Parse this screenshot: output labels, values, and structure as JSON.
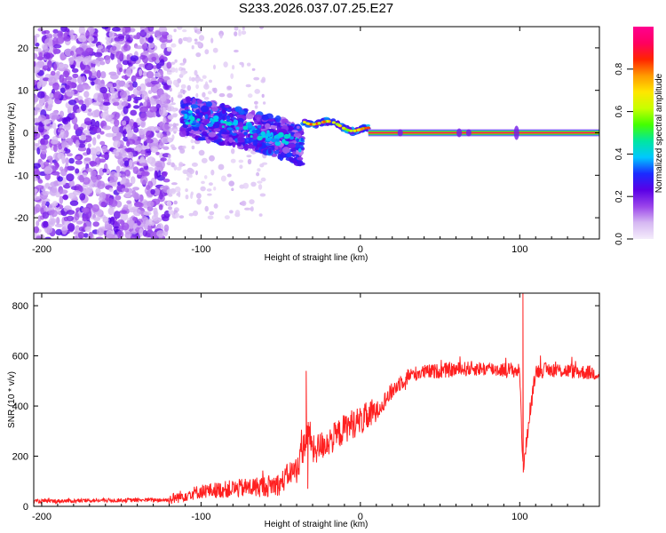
{
  "title": "S233.2026.037.07.25.E27",
  "chart_data": [
    {
      "type": "heatmap",
      "xlabel": "Height of straight line (km)",
      "ylabel": "Frequency (Hz)",
      "xlim": [
        -205,
        150
      ],
      "ylim": [
        -25,
        25
      ],
      "xticks": [
        -200,
        -100,
        0,
        100
      ],
      "yticks": [
        20,
        10,
        0,
        -10,
        -20
      ],
      "colorbar": {
        "label": "Normalized spectral amplitude",
        "range": [
          0.0,
          1.0
        ],
        "ticks": [
          0.0,
          0.2,
          0.4,
          0.6,
          0.8
        ],
        "tick_labels": [
          "0.0",
          "0.2",
          "0.4",
          "0.6",
          "0.8"
        ],
        "colors": [
          "#f4ecfb",
          "#d6b8f2",
          "#9a44ea",
          "#5a00e6",
          "#1a2bff",
          "#00c8ff",
          "#00e6a0",
          "#44ff00",
          "#c8ff00",
          "#ffe600",
          "#ff9a00",
          "#ff2400",
          "#ff0060",
          "#ff0090"
        ]
      },
      "features": [
        {
          "name": "broadband noise",
          "x_range": [
            -205,
            -120
          ],
          "freq_range": [
            -25,
            25
          ],
          "amplitude": 0.15
        },
        {
          "name": "scattered noise",
          "x_range": [
            -120,
            -60
          ],
          "freq_range": [
            -20,
            25
          ],
          "amplitude": 0.05
        },
        {
          "name": "vibration burst",
          "x_range": [
            -112,
            -36
          ],
          "center_freq": [
            4,
            2,
            0,
            -3
          ],
          "amplitude": 0.3
        },
        {
          "name": "doppler feature",
          "x_range": [
            -36,
            5
          ],
          "center_freq": [
            3,
            0.5
          ],
          "amplitude": 0.75
        },
        {
          "name": "steady tone",
          "x_range": [
            5,
            150
          ],
          "center_freq": 0,
          "amplitude": 0.95
        }
      ]
    },
    {
      "type": "line",
      "xlabel": "Height of straight line (km)",
      "ylabel": "SNR (10 * v/v)",
      "xlim": [
        -205,
        150
      ],
      "ylim": [
        0,
        850
      ],
      "xticks": [
        -200,
        -100,
        0,
        100
      ],
      "yticks": [
        0,
        200,
        400,
        600,
        800
      ],
      "series": [
        {
          "name": "SNR",
          "color": "#ff2020",
          "x": [
            -205,
            -180,
            -160,
            -140,
            -120,
            -110,
            -100,
            -90,
            -80,
            -70,
            -60,
            -50,
            -45,
            -40,
            -35,
            -32,
            -30,
            -25,
            -20,
            -15,
            -10,
            -5,
            0,
            5,
            10,
            15,
            20,
            25,
            30,
            35,
            40,
            50,
            60,
            70,
            80,
            90,
            100,
            102,
            110,
            120,
            130,
            140,
            150
          ],
          "values": [
            20,
            22,
            24,
            25,
            26,
            45,
            60,
            65,
            70,
            75,
            80,
            90,
            130,
            150,
            250,
            300,
            220,
            240,
            260,
            280,
            310,
            330,
            340,
            360,
            380,
            420,
            460,
            495,
            520,
            530,
            535,
            540,
            545,
            550,
            548,
            545,
            540,
            150,
            540,
            545,
            540,
            535,
            530
          ],
          "spikes": [
            {
              "x": -34,
              "value": 540
            },
            {
              "x": -33,
              "value": 70
            },
            {
              "x": 102,
              "value": 850
            },
            {
              "x": 102.5,
              "value": 145
            }
          ]
        }
      ]
    }
  ]
}
